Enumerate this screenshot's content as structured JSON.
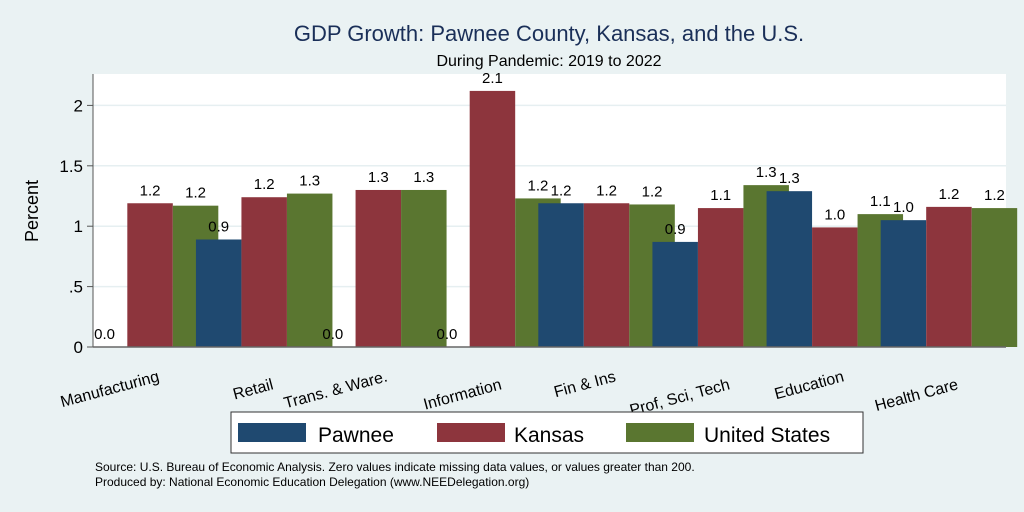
{
  "chart_data": {
    "type": "bar",
    "title": "GDP Growth: Pawnee County, Kansas, and the U.S.",
    "subtitle": "During Pandemic: 2019 to 2022",
    "xlabel": "",
    "ylabel": "Percent",
    "ylim": [
      0,
      2.26
    ],
    "yticks": [
      0,
      0.5,
      1,
      1.5,
      2
    ],
    "ytick_labels": [
      "0",
      ".5",
      "1",
      "1.5",
      "2"
    ],
    "grid": true,
    "categories": [
      "Manufacturing",
      "Retail",
      "Trans. & Ware.",
      "Information",
      "Fin & Ins",
      "Prof, Sci, Tech",
      "Education",
      "Health Care"
    ],
    "series": [
      {
        "name": "Pawnee",
        "color": "#1f4970",
        "values": [
          0.0,
          0.89,
          0.0,
          0.0,
          1.19,
          0.87,
          1.29,
          1.05
        ],
        "labels": [
          "0.0",
          "0.9",
          "0.0",
          "0.0",
          "1.2",
          "0.9",
          "1.3",
          "1.0"
        ]
      },
      {
        "name": "Kansas",
        "color": "#8d353d",
        "values": [
          1.19,
          1.24,
          1.3,
          2.12,
          1.19,
          1.15,
          0.99,
          1.16
        ],
        "labels": [
          "1.2",
          "1.2",
          "1.3",
          "2.1",
          "1.2",
          "1.1",
          "1.0",
          "1.2"
        ]
      },
      {
        "name": "United States",
        "color": "#5a7630",
        "values": [
          1.17,
          1.27,
          1.3,
          1.23,
          1.18,
          1.34,
          1.1,
          1.15
        ],
        "labels": [
          "1.2",
          "1.3",
          "1.3",
          "1.2",
          "1.2",
          "1.3",
          "1.1",
          "1.2"
        ]
      }
    ],
    "legend_position": "bottom",
    "notes": [
      "Source: U.S. Bureau of Economic Analysis. Zero values indicate missing data values, or values greater than 200.",
      "Produced by: National Economic Education Delegation (www.NEEDelegation.org)"
    ]
  }
}
